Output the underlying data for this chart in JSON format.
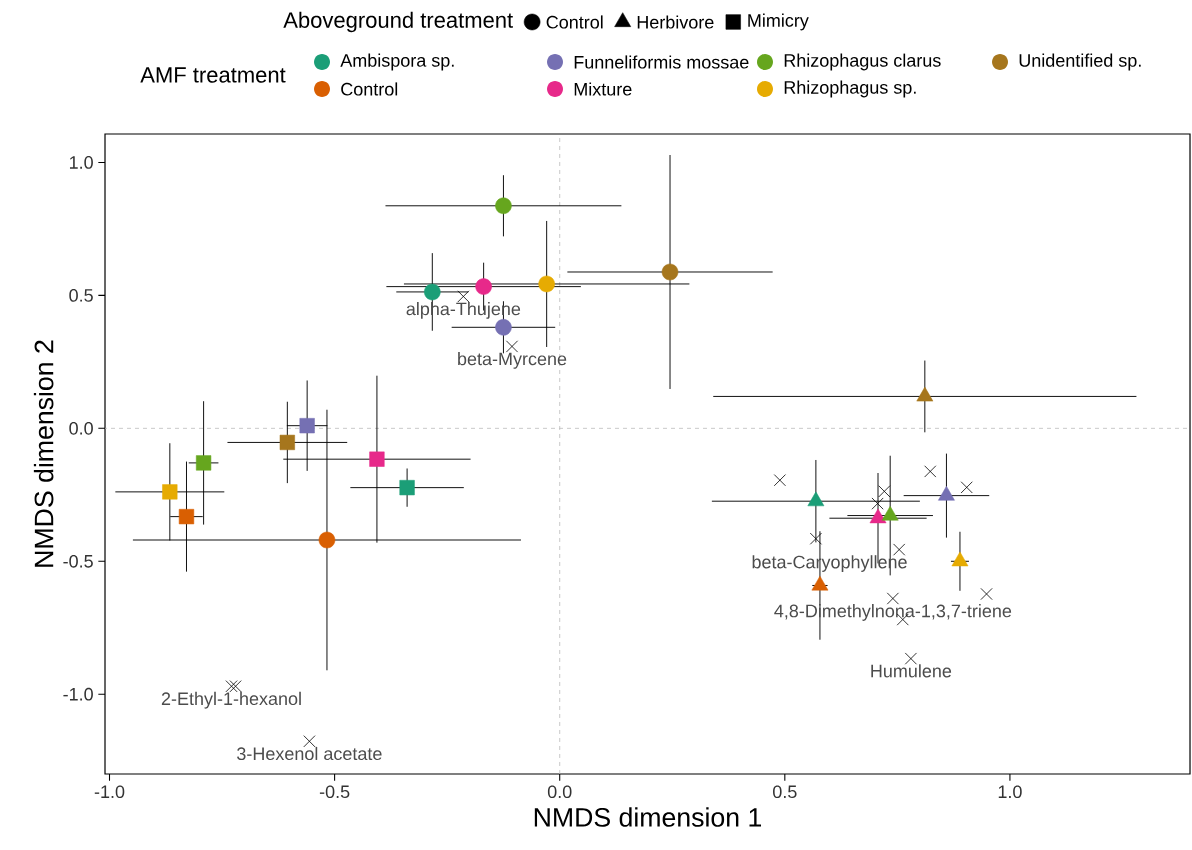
{
  "chart_data": {
    "type": "scatter",
    "xlabel": "NMDS dimension 1",
    "ylabel": "NMDS dimension 2",
    "xlim": [
      -1.01,
      1.4
    ],
    "ylim": [
      -1.3,
      1.107
    ],
    "xticks": [
      {
        "value": -1,
        "label": "-1.0"
      },
      -0.5,
      {
        "value": 0,
        "label": "0.0"
      },
      0.5,
      {
        "value": 1,
        "label": "1.0"
      }
    ],
    "yticks": [
      {
        "value": -1,
        "label": "-1.0"
      },
      -0.5,
      {
        "value": 0,
        "label": "0.0"
      },
      0.5,
      {
        "value": 1,
        "label": "1.0"
      }
    ],
    "grid": false,
    "legend": "top",
    "legend_title": "AMF treatment",
    "series": [
      {
        "name": "Ambispora sp.",
        "color": "#1b9e77",
        "marker": "circle",
        "x": [
          -0.283
        ],
        "values": [
          0.513
        ],
        "errors": [
          0.146
        ],
        "xerrors": [
          0.08
        ]
      },
      {
        "name": "Control",
        "color": "#d95f02",
        "marker": "circle",
        "x": [
          -0.517
        ],
        "values": [
          -0.42
        ],
        "errors": [
          0.49
        ],
        "xerrors": [
          0.431
        ]
      },
      {
        "name": "Funneliformis mossae",
        "color": "#7570b3",
        "marker": "circle",
        "x": [
          -0.125
        ],
        "values": [
          0.38
        ],
        "errors": [
          0.098
        ],
        "xerrors": [
          0.115
        ]
      },
      {
        "name": "Mixture",
        "color": "#e7298a",
        "marker": "circle",
        "x": [
          -0.169
        ],
        "values": [
          0.533
        ],
        "errors": [
          0.09
        ],
        "xerrors": [
          0.216
        ]
      },
      {
        "name": "Rhizophagus clarus",
        "color": "#66a61e",
        "marker": "circle",
        "x": [
          -0.125
        ],
        "values": [
          0.837
        ],
        "errors": [
          0.115
        ],
        "xerrors": [
          0.262
        ]
      },
      {
        "name": "Rhizophagus sp.",
        "color": "#e6ab02",
        "marker": "circle",
        "x": [
          -0.029
        ],
        "values": [
          0.543
        ],
        "errors": [
          0.237
        ],
        "xerrors": [
          0.317
        ]
      },
      {
        "name": "Unidentified sp.",
        "color": "#a6761d",
        "marker": "circle",
        "x": [
          0.245
        ],
        "values": [
          0.588
        ],
        "errors": [
          0.44
        ],
        "xerrors": [
          0.228
        ]
      },
      {
        "color": "#1b9e77",
        "marker": "triangle",
        "x": [
          0.569
        ],
        "values": [
          -0.274
        ],
        "errors": [
          0.155
        ],
        "xerrors": [
          0.231
        ]
      },
      {
        "color": "#d95f02",
        "marker": "triangle",
        "x": [
          0.578
        ],
        "values": [
          -0.591
        ],
        "errors": [
          0.204
        ],
        "xerrors": [
          0.017
        ]
      },
      {
        "color": "#7570b3",
        "marker": "triangle",
        "x": [
          0.859
        ],
        "values": [
          -0.253
        ],
        "errors": [
          0.158
        ],
        "xerrors": [
          0.095
        ]
      },
      {
        "color": "#e7298a",
        "marker": "triangle",
        "x": [
          0.707
        ],
        "values": [
          -0.338
        ],
        "errors": [
          0.17
        ],
        "xerrors": [
          0.108
        ]
      },
      {
        "color": "#66a61e",
        "marker": "triangle",
        "x": [
          0.734
        ],
        "values": [
          -0.328
        ],
        "errors": [
          0.225
        ],
        "xerrors": [
          0.095
        ]
      },
      {
        "color": "#e6ab02",
        "marker": "triangle",
        "x": [
          0.889
        ],
        "values": [
          -0.5
        ],
        "errors": [
          0.111
        ],
        "xerrors": [
          0.02
        ]
      },
      {
        "color": "#a6761d",
        "marker": "triangle",
        "x": [
          0.811
        ],
        "values": [
          0.12
        ],
        "errors": [
          0.135
        ],
        "xerrors": [
          0.47
        ]
      },
      {
        "color": "#1b9e77",
        "marker": "square",
        "x": [
          -0.339
        ],
        "values": [
          -0.223
        ],
        "errors": [
          0.072
        ],
        "xerrors": [
          0.126
        ]
      },
      {
        "color": "#d95f02",
        "marker": "square",
        "x": [
          -0.829
        ],
        "values": [
          -0.332
        ],
        "errors": [
          0.207
        ],
        "xerrors": [
          0.036
        ]
      },
      {
        "color": "#7570b3",
        "marker": "square",
        "x": [
          -0.561
        ],
        "values": [
          0.01
        ],
        "errors": [
          0.17
        ],
        "xerrors": [
          0.045
        ]
      },
      {
        "color": "#e7298a",
        "marker": "square",
        "x": [
          -0.406
        ],
        "values": [
          -0.116
        ],
        "errors": [
          0.314
        ],
        "xerrors": [
          0.208
        ]
      },
      {
        "color": "#66a61e",
        "marker": "square",
        "x": [
          -0.791
        ],
        "values": [
          -0.13
        ],
        "errors": [
          0.232
        ],
        "xerrors": [
          0.033
        ]
      },
      {
        "color": "#e6ab02",
        "marker": "square",
        "x": [
          -0.866
        ],
        "values": [
          -0.239
        ],
        "errors": [
          0.183
        ],
        "xerrors": [
          0.121
        ]
      },
      {
        "color": "#a6761d",
        "marker": "square",
        "x": [
          -0.605
        ],
        "values": [
          -0.053
        ],
        "errors": [
          0.153
        ],
        "xerrors": [
          0.133
        ]
      },
      {
        "marker": "cross",
        "color": "#000000",
        "x": [
          -0.214,
          -0.106,
          -0.729,
          -0.72,
          -0.556,
          0.754,
          0.74,
          0.762,
          0.78,
          0.489,
          0.569,
          0.721,
          0.706,
          0.823,
          0.904,
          0.948
        ],
        "values": [
          0.496,
          0.308,
          -0.97,
          -0.97,
          -1.177,
          -0.456,
          -0.64,
          -0.719,
          -0.866,
          -0.195,
          -0.415,
          -0.237,
          -0.283,
          -0.162,
          -0.222,
          -0.623
        ]
      }
    ],
    "ref_lines": [
      {
        "axis": "x",
        "value": 0,
        "color": "#bbbbbb",
        "line_style": "dashed"
      },
      {
        "axis": "y",
        "value": 0,
        "color": "#bbbbbb",
        "line_style": "dashed"
      }
    ],
    "annotations": [
      "Aboveground treatment",
      "Control",
      "Herbivore",
      "Mimicry",
      {
        "text": "alpha-Thujene",
        "x": -0.214,
        "y": 0.496
      },
      {
        "text": "beta-Myrcene",
        "x": -0.106,
        "y": 0.308
      },
      {
        "text": "2-Ethyl-1-hexanol",
        "x": -0.729,
        "y": -0.97
      },
      {
        "text": "3-Hexenol acetate",
        "x": -0.556,
        "y": -1.177
      },
      {
        "text": "beta-Caryophyllene",
        "x": 0.754,
        "y": -0.456
      },
      {
        "text": "4,8-Dimethylnona-1,3,7-triene",
        "x": 0.74,
        "y": -0.64
      },
      {
        "text": "Humulene",
        "x": 0.78,
        "y": -0.866
      }
    ]
  }
}
